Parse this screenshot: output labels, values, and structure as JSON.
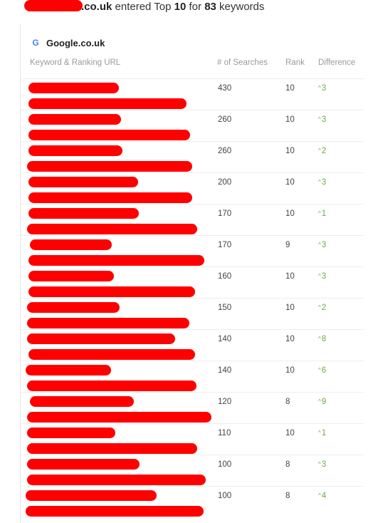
{
  "headline": {
    "domain_suffix": ".co.uk",
    "text_1": " entered Top ",
    "top_n": "10",
    "text_2": " for ",
    "count": "83",
    "text_3": " keywords"
  },
  "engine": {
    "icon": "google-g-icon",
    "label": "Google.co.uk"
  },
  "columns": {
    "keyword": "Keyword & Ranking URL",
    "searches": "# of Searches",
    "rank": "Rank",
    "difference": "Difference"
  },
  "colors": {
    "redaction": "#ff0000",
    "positive": "#6aaa43",
    "header_text": "#9a9a9a"
  },
  "rows": [
    {
      "searches": "430",
      "rank": "10",
      "difference": "3"
    },
    {
      "searches": "260",
      "rank": "10",
      "difference": "3"
    },
    {
      "searches": "260",
      "rank": "10",
      "difference": "2"
    },
    {
      "searches": "200",
      "rank": "10",
      "difference": "3"
    },
    {
      "searches": "170",
      "rank": "10",
      "difference": "1"
    },
    {
      "searches": "170",
      "rank": "9",
      "difference": "3"
    },
    {
      "searches": "160",
      "rank": "10",
      "difference": "3"
    },
    {
      "searches": "150",
      "rank": "10",
      "difference": "2"
    },
    {
      "searches": "140",
      "rank": "10",
      "difference": "8"
    },
    {
      "searches": "140",
      "rank": "10",
      "difference": "6"
    },
    {
      "searches": "120",
      "rank": "8",
      "difference": "9"
    },
    {
      "searches": "110",
      "rank": "10",
      "difference": "1"
    },
    {
      "searches": "100",
      "rank": "8",
      "difference": "3"
    },
    {
      "searches": "100",
      "rank": "8",
      "difference": "4"
    }
  ]
}
